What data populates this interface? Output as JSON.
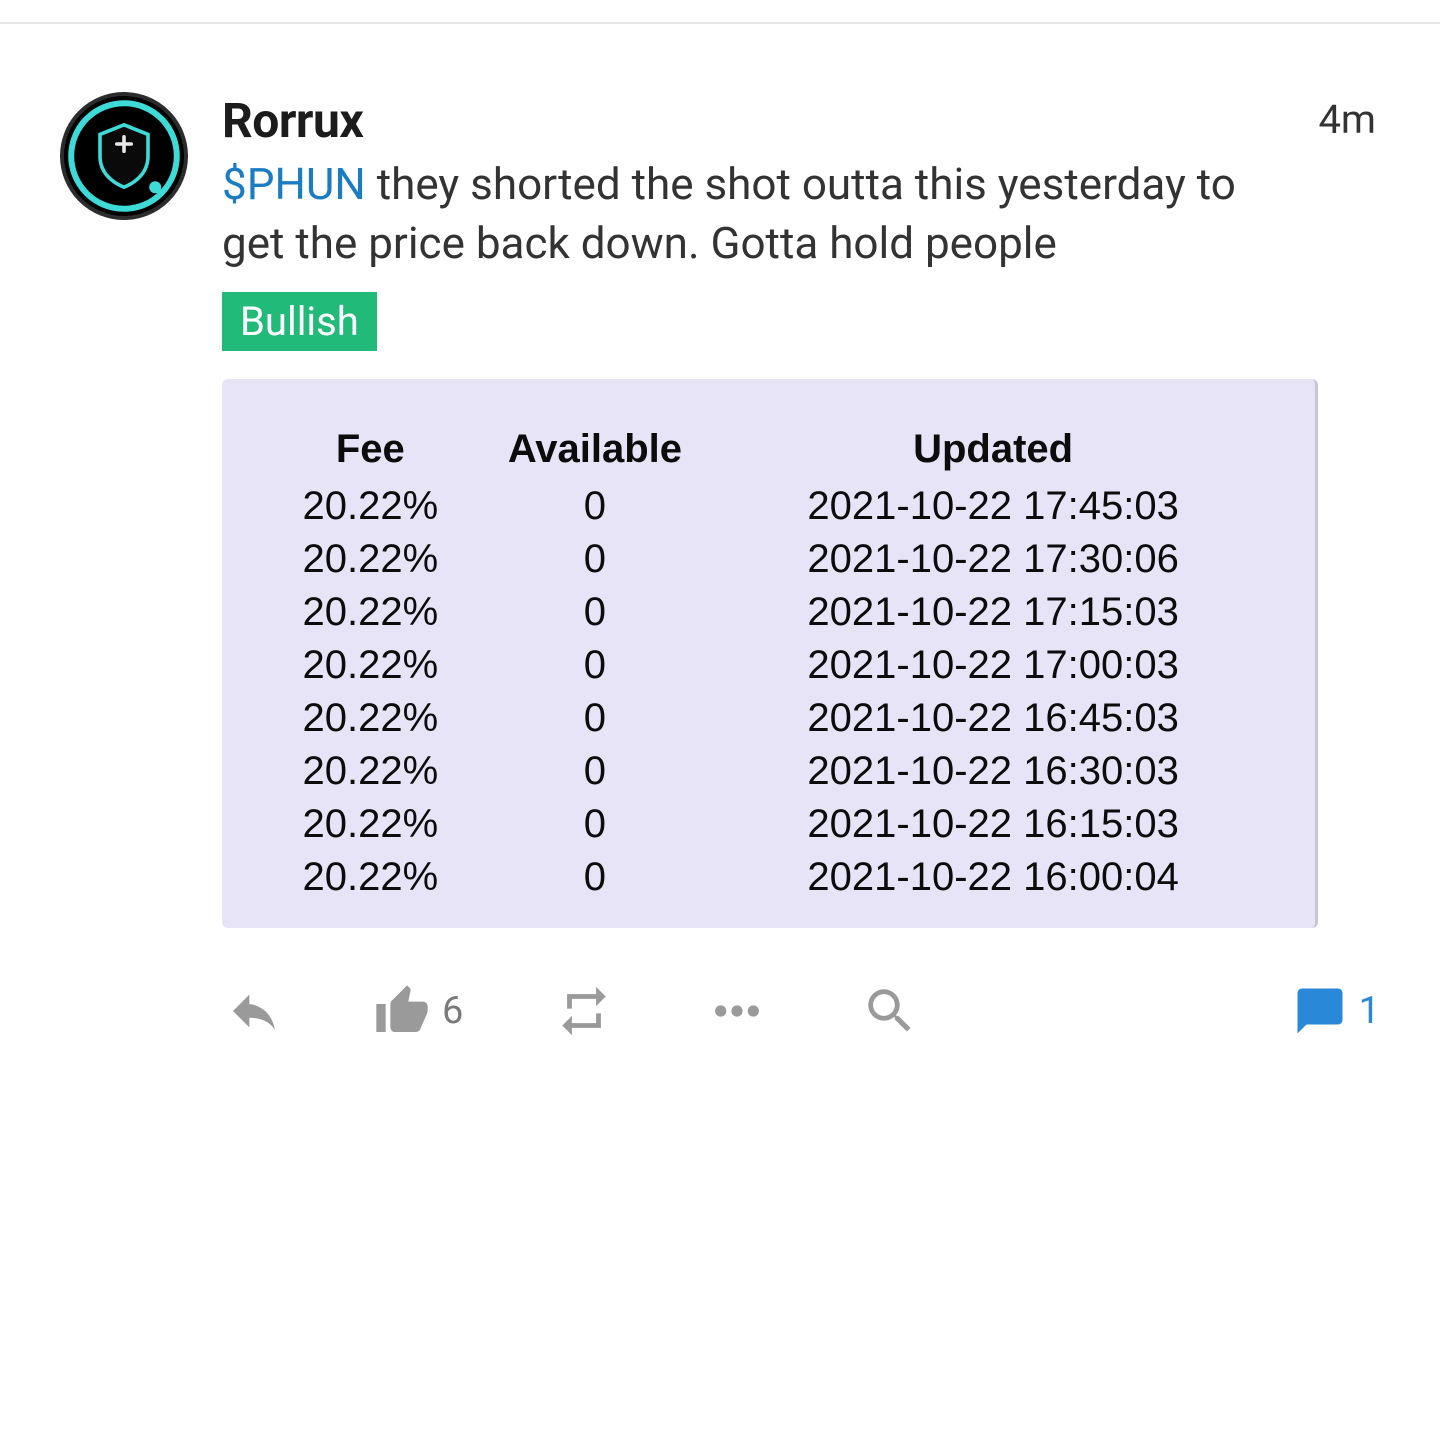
{
  "post": {
    "username": "Rorrux",
    "time": "4m",
    "ticker": "$PHUN",
    "body_rest": " they shorted the shot outta this yesterday to get the price back down. Gotta hold people",
    "sentiment": "Bullish",
    "sentiment_bg": "#21ba79",
    "sentiment_fg": "#ffffff",
    "avatar_colors": {
      "ring": "#3ddad7",
      "bg": "#000000",
      "shield_outline": "#3ddad7",
      "shield_fill": "#0a0a0a"
    }
  },
  "table": {
    "background_color": "#e8e4f7",
    "text_color": "#0c0c0c",
    "font_size": 40,
    "header_font_weight": 700,
    "columns": [
      "Fee",
      "Available",
      "Updated"
    ],
    "rows": [
      [
        "20.22%",
        "0",
        "2021-10-22 17:45:03"
      ],
      [
        "20.22%",
        "0",
        "2021-10-22 17:30:06"
      ],
      [
        "20.22%",
        "0",
        "2021-10-22 17:15:03"
      ],
      [
        "20.22%",
        "0",
        "2021-10-22 17:00:03"
      ],
      [
        "20.22%",
        "0",
        "2021-10-22 16:45:03"
      ],
      [
        "20.22%",
        "0",
        "2021-10-22 16:30:03"
      ],
      [
        "20.22%",
        "0",
        "2021-10-22 16:15:03"
      ],
      [
        "20.22%",
        "0",
        "2021-10-22 16:00:04"
      ]
    ]
  },
  "actions": {
    "like_count": "6",
    "comment_count": "1",
    "icon_color": "#9a9a9a",
    "comment_color": "#2a88d8"
  }
}
